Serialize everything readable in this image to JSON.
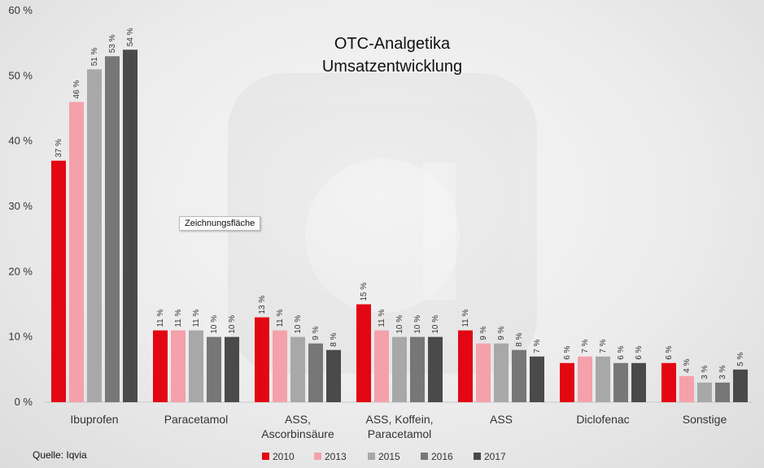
{
  "chart_data": {
    "type": "bar",
    "title": [
      "OTC-Analgetika",
      "Umsatzentwicklung"
    ],
    "categories": [
      [
        "Ibuprofen"
      ],
      [
        "Paracetamol"
      ],
      [
        "ASS,",
        "Ascorbinsäure"
      ],
      [
        "ASS, Koffein,",
        "Paracetamol"
      ],
      [
        "ASS"
      ],
      [
        "Diclofenac"
      ],
      [
        "Sonstige"
      ]
    ],
    "series": [
      {
        "name": "2010",
        "color": "#e30613",
        "values": [
          37,
          11,
          13,
          15,
          11,
          6,
          6
        ]
      },
      {
        "name": "2013",
        "color": "#f4a1ab",
        "values": [
          46,
          11,
          11,
          11,
          9,
          7,
          4
        ]
      },
      {
        "name": "2015",
        "color": "#a8a8a8",
        "values": [
          51,
          11,
          10,
          10,
          9,
          7,
          3
        ]
      },
      {
        "name": "2016",
        "color": "#777777",
        "values": [
          53,
          10,
          9,
          10,
          8,
          6,
          3
        ]
      },
      {
        "name": "2017",
        "color": "#4a4a4a",
        "values": [
          54,
          10,
          8,
          10,
          7,
          6,
          5
        ]
      }
    ],
    "ylim": [
      0,
      60
    ],
    "yticks": [
      0,
      10,
      20,
      30,
      40,
      50,
      60
    ],
    "value_suffix": " %",
    "grid": false,
    "legend_position": "bottom"
  },
  "source": "Quelle: Iqvia",
  "tooltip": "Zeichnungsfläche"
}
